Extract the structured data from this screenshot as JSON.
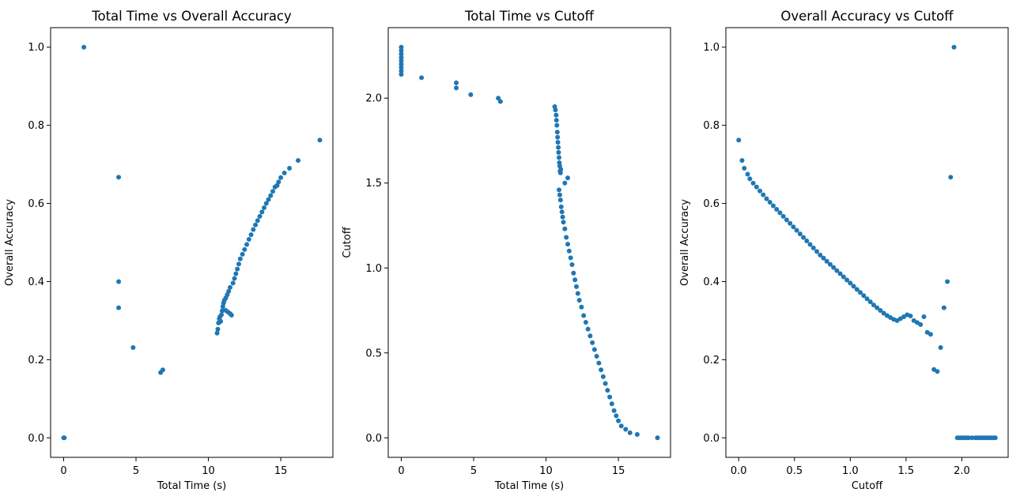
{
  "chart_data": [
    {
      "type": "scatter",
      "title": "Total Time vs Overall Accuracy",
      "xlabel": "Total Time (s)",
      "ylabel": "Overall Accuracy",
      "xlim": [
        -0.9,
        18.6
      ],
      "ylim": [
        -0.05,
        1.05
      ],
      "xticks": [
        0,
        5,
        10,
        15
      ],
      "xtick_labels": [
        "0",
        "5",
        "10",
        "15"
      ],
      "yticks": [
        0.0,
        0.2,
        0.4,
        0.6,
        0.8,
        1.0
      ],
      "ytick_labels": [
        "0.0",
        "0.2",
        "0.4",
        "0.6",
        "0.8",
        "1.0"
      ],
      "grid": false,
      "color": "#1f77b4",
      "x": [
        0,
        0.05,
        1.4,
        3.8,
        3.8,
        3.8,
        4.8,
        6.7,
        6.85,
        10.6,
        10.65,
        10.7,
        10.75,
        10.8,
        10.85,
        10.9,
        10.95,
        11.0,
        11.05,
        11.1,
        11.2,
        11.3,
        11.4,
        11.5,
        11.2,
        11.35,
        11.5,
        11.6,
        11.7,
        11.8,
        11.9,
        12.0,
        12.1,
        12.2,
        12.35,
        12.5,
        12.65,
        12.8,
        12.95,
        13.1,
        13.25,
        13.4,
        13.55,
        13.7,
        13.85,
        14.0,
        14.15,
        14.3,
        14.45,
        14.6,
        14.75,
        14.85,
        15.0,
        15.25,
        15.6,
        16.2,
        17.7
      ],
      "y": [
        0,
        0,
        1.0,
        0.667,
        0.4,
        0.333,
        0.231,
        0.167,
        0.174,
        0.268,
        0.278,
        0.294,
        0.305,
        0.31,
        0.298,
        0.315,
        0.325,
        0.336,
        0.345,
        0.352,
        0.358,
        0.366,
        0.375,
        0.385,
        0.326,
        0.322,
        0.318,
        0.314,
        0.396,
        0.408,
        0.42,
        0.432,
        0.445,
        0.458,
        0.47,
        0.482,
        0.495,
        0.508,
        0.52,
        0.533,
        0.545,
        0.556,
        0.567,
        0.578,
        0.589,
        0.6,
        0.61,
        0.62,
        0.631,
        0.642,
        0.646,
        0.655,
        0.666,
        0.678,
        0.69,
        0.71,
        0.762
      ]
    },
    {
      "type": "scatter",
      "title": "Total Time vs Cutoff",
      "xlabel": "Total Time (s)",
      "ylabel": "Cutoff",
      "xlim": [
        -0.9,
        18.6
      ],
      "ylim": [
        -0.115,
        2.415
      ],
      "xticks": [
        0,
        5,
        10,
        15
      ],
      "xtick_labels": [
        "0",
        "5",
        "10",
        "15"
      ],
      "yticks": [
        0.0,
        0.5,
        1.0,
        1.5,
        2.0
      ],
      "ytick_labels": [
        "0.0",
        "0.5",
        "1.0",
        "1.5",
        "2.0"
      ],
      "grid": false,
      "color": "#1f77b4",
      "x": [
        0,
        0,
        0,
        0,
        0,
        0,
        0,
        0,
        0,
        1.4,
        3.8,
        3.8,
        4.8,
        6.7,
        6.85,
        10.6,
        10.65,
        10.7,
        10.72,
        10.75,
        10.78,
        10.8,
        10.82,
        10.85,
        10.87,
        10.9,
        10.92,
        10.95,
        10.97,
        11.0,
        11.02,
        11.3,
        11.5,
        10.9,
        10.95,
        11.0,
        11.05,
        11.1,
        11.15,
        11.2,
        11.3,
        11.4,
        11.5,
        11.6,
        11.7,
        11.8,
        11.9,
        12.0,
        12.1,
        12.2,
        12.3,
        12.45,
        12.6,
        12.75,
        12.9,
        13.05,
        13.2,
        13.35,
        13.5,
        13.65,
        13.8,
        13.95,
        14.1,
        14.25,
        14.4,
        14.55,
        14.7,
        14.85,
        15.0,
        15.2,
        15.5,
        15.8,
        16.3,
        17.7
      ],
      "y": [
        2.3,
        2.28,
        2.26,
        2.24,
        2.22,
        2.2,
        2.18,
        2.16,
        2.14,
        2.12,
        2.09,
        2.06,
        2.02,
        2.0,
        1.98,
        1.95,
        1.93,
        1.9,
        1.87,
        1.84,
        1.8,
        1.77,
        1.74,
        1.71,
        1.68,
        1.65,
        1.62,
        1.6,
        1.57,
        1.56,
        1.58,
        1.5,
        1.53,
        1.46,
        1.43,
        1.4,
        1.36,
        1.33,
        1.3,
        1.27,
        1.23,
        1.18,
        1.14,
        1.1,
        1.06,
        1.02,
        0.97,
        0.93,
        0.89,
        0.85,
        0.81,
        0.77,
        0.72,
        0.68,
        0.64,
        0.6,
        0.56,
        0.52,
        0.48,
        0.44,
        0.4,
        0.36,
        0.32,
        0.28,
        0.24,
        0.2,
        0.16,
        0.13,
        0.1,
        0.07,
        0.05,
        0.03,
        0.02,
        0.0
      ]
    },
    {
      "type": "scatter",
      "title": "Overall Accuracy vs Cutoff",
      "xlabel": "Cutoff",
      "ylabel": "Overall Accuracy",
      "xlim": [
        -0.115,
        2.415
      ],
      "ylim": [
        -0.05,
        1.05
      ],
      "xticks": [
        0.0,
        0.5,
        1.0,
        1.5,
        2.0
      ],
      "xtick_labels": [
        "0.0",
        "0.5",
        "1.0",
        "1.5",
        "2.0"
      ],
      "yticks": [
        0.0,
        0.2,
        0.4,
        0.6,
        0.8,
        1.0
      ],
      "ytick_labels": [
        "0.0",
        "0.2",
        "0.4",
        "0.6",
        "0.8",
        "1.0"
      ],
      "grid": false,
      "color": "#1f77b4",
      "x": [
        0.0,
        0.03,
        0.05,
        0.08,
        0.1,
        0.13,
        0.16,
        0.19,
        0.22,
        0.25,
        0.28,
        0.31,
        0.34,
        0.37,
        0.4,
        0.43,
        0.46,
        0.49,
        0.52,
        0.55,
        0.58,
        0.61,
        0.64,
        0.67,
        0.7,
        0.73,
        0.76,
        0.79,
        0.82,
        0.85,
        0.88,
        0.91,
        0.94,
        0.97,
        1.0,
        1.03,
        1.06,
        1.09,
        1.12,
        1.15,
        1.18,
        1.21,
        1.24,
        1.27,
        1.3,
        1.33,
        1.36,
        1.39,
        1.42,
        1.45,
        1.48,
        1.51,
        1.54,
        1.57,
        1.6,
        1.63,
        1.66,
        1.69,
        1.72,
        1.75,
        1.78,
        1.81,
        1.84,
        1.87,
        1.9,
        1.93,
        1.96,
        1.98,
        2.0,
        2.02,
        2.04,
        2.06,
        2.09,
        2.12,
        2.14,
        2.16,
        2.18,
        2.2,
        2.22,
        2.24,
        2.26,
        2.28,
        2.3
      ],
      "y": [
        0.762,
        0.71,
        0.69,
        0.675,
        0.663,
        0.652,
        0.642,
        0.632,
        0.622,
        0.612,
        0.603,
        0.594,
        0.585,
        0.576,
        0.567,
        0.558,
        0.549,
        0.54,
        0.531,
        0.522,
        0.513,
        0.504,
        0.495,
        0.486,
        0.477,
        0.468,
        0.46,
        0.452,
        0.444,
        0.436,
        0.428,
        0.42,
        0.412,
        0.404,
        0.396,
        0.388,
        0.38,
        0.372,
        0.364,
        0.356,
        0.348,
        0.34,
        0.333,
        0.326,
        0.319,
        0.313,
        0.308,
        0.303,
        0.3,
        0.305,
        0.31,
        0.315,
        0.312,
        0.3,
        0.295,
        0.29,
        0.31,
        0.27,
        0.265,
        0.175,
        0.17,
        0.231,
        0.333,
        0.4,
        0.667,
        1.0,
        0,
        0,
        0,
        0,
        0,
        0,
        0,
        0,
        0,
        0,
        0,
        0,
        0,
        0,
        0,
        0,
        0
      ]
    }
  ]
}
